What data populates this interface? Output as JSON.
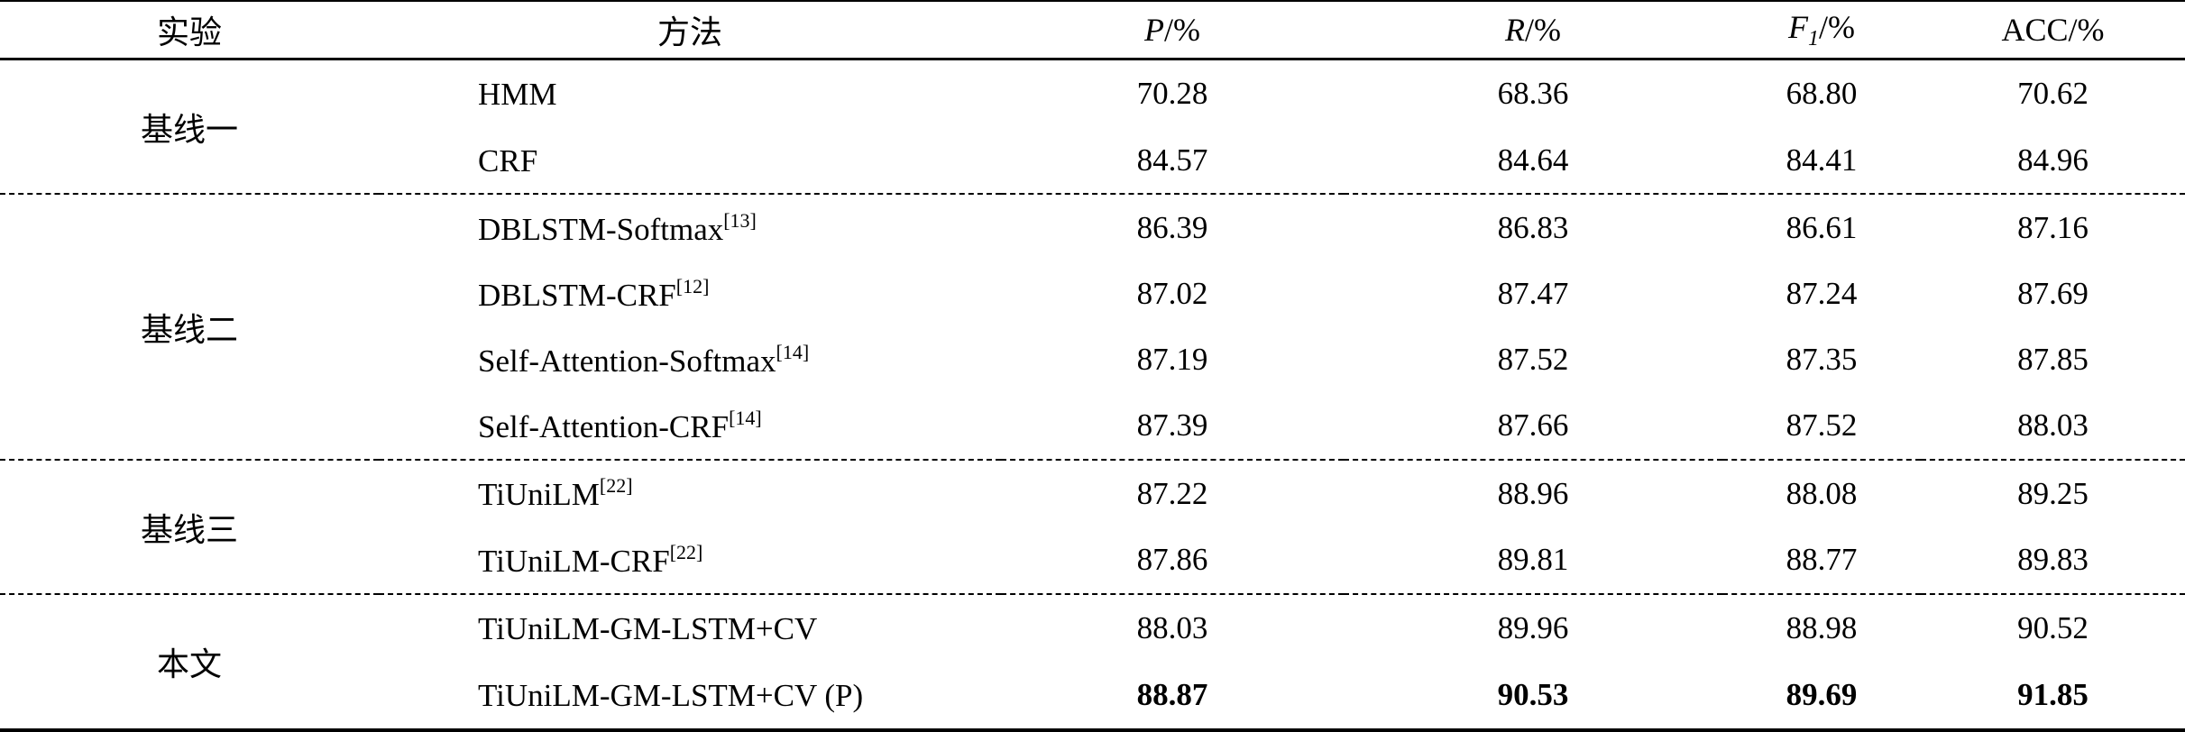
{
  "header": {
    "exp": "实验",
    "method": "方法",
    "p": {
      "symbol": "P",
      "sub": "",
      "unit": "/%"
    },
    "r": {
      "symbol": "R",
      "sub": "",
      "unit": "/%"
    },
    "f1": {
      "symbol": "F",
      "sub": "1",
      "unit": "/%"
    },
    "acc": {
      "symbol": "ACC",
      "sub": "",
      "unit": "/%"
    }
  },
  "groups": [
    {
      "label": "基线一",
      "rows": [
        {
          "method": "HMM",
          "ref": "",
          "p": "70.28",
          "r": "68.36",
          "f1": "68.80",
          "acc": "70.62"
        },
        {
          "method": "CRF",
          "ref": "",
          "p": "84.57",
          "r": "84.64",
          "f1": "84.41",
          "acc": "84.96"
        }
      ]
    },
    {
      "label": "基线二",
      "rows": [
        {
          "method": "DBLSTM-Softmax",
          "ref": "[13]",
          "p": "86.39",
          "r": "86.83",
          "f1": "86.61",
          "acc": "87.16"
        },
        {
          "method": "DBLSTM-CRF",
          "ref": "[12]",
          "p": "87.02",
          "r": "87.47",
          "f1": "87.24",
          "acc": "87.69"
        },
        {
          "method": "Self-Attention-Softmax",
          "ref": "[14]",
          "p": "87.19",
          "r": "87.52",
          "f1": "87.35",
          "acc": "87.85"
        },
        {
          "method": "Self-Attention-CRF",
          "ref": "[14]",
          "p": "87.39",
          "r": "87.66",
          "f1": "87.52",
          "acc": "88.03"
        }
      ]
    },
    {
      "label": "基线三",
      "rows": [
        {
          "method": "TiUniLM",
          "ref": "[22]",
          "p": "87.22",
          "r": "88.96",
          "f1": "88.08",
          "acc": "89.25"
        },
        {
          "method": "TiUniLM-CRF",
          "ref": "[22]",
          "p": "87.86",
          "r": "89.81",
          "f1": "88.77",
          "acc": "89.83"
        }
      ]
    },
    {
      "label": "本文",
      "rows": [
        {
          "method": "TiUniLM-GM-LSTM+CV",
          "ref": "",
          "p": "88.03",
          "r": "89.96",
          "f1": "88.98",
          "acc": "90.52"
        },
        {
          "method": "TiUniLM-GM-LSTM+CV (P)",
          "ref": "",
          "p": "88.87",
          "r": "90.53",
          "f1": "89.69",
          "acc": "91.85"
        }
      ]
    }
  ],
  "chart_data": {
    "type": "table",
    "title": "",
    "columns": [
      "实验",
      "方法",
      "P/%",
      "R/%",
      "F1/%",
      "ACC/%"
    ],
    "rows": [
      [
        "基线一",
        "HMM",
        70.28,
        68.36,
        68.8,
        70.62
      ],
      [
        "基线一",
        "CRF",
        84.57,
        84.64,
        84.41,
        84.96
      ],
      [
        "基线二",
        "DBLSTM-Softmax[13]",
        86.39,
        86.83,
        86.61,
        87.16
      ],
      [
        "基线二",
        "DBLSTM-CRF[12]",
        87.02,
        87.47,
        87.24,
        87.69
      ],
      [
        "基线二",
        "Self-Attention-Softmax[14]",
        87.19,
        87.52,
        87.35,
        87.85
      ],
      [
        "基线二",
        "Self-Attention-CRF[14]",
        87.39,
        87.66,
        87.52,
        88.03
      ],
      [
        "基线三",
        "TiUniLM[22]",
        87.22,
        88.96,
        88.08,
        89.25
      ],
      [
        "基线三",
        "TiUniLM-CRF[22]",
        87.86,
        89.81,
        88.77,
        89.83
      ],
      [
        "本文",
        "TiUniLM-GM-LSTM+CV",
        88.03,
        89.96,
        88.98,
        90.52
      ],
      [
        "本文",
        "TiUniLM-GM-LSTM+CV (P)",
        88.87,
        90.53,
        89.69,
        91.85
      ]
    ]
  }
}
